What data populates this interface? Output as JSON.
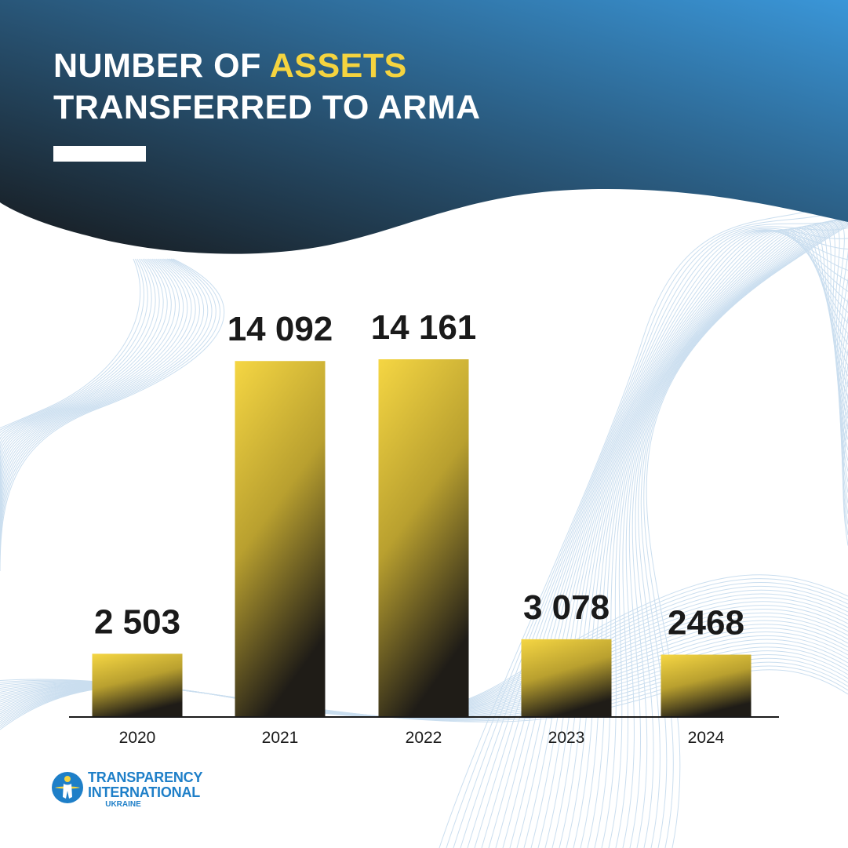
{
  "header": {
    "title_part1": "NUMBER OF ",
    "title_highlight": "ASSETS",
    "title_line2": "TRANSFERRED TO ARMA"
  },
  "colors": {
    "header_dark": "#1a1d21",
    "header_blue": "#3a96d8",
    "highlight_yellow": "#f5d43f",
    "bar_top": "#f5d643",
    "bar_bottom": "#1f1c17",
    "text_dark": "#1a1a1a",
    "logo_blue": "#1e7fc8"
  },
  "chart_data": {
    "type": "bar",
    "categories": [
      "2020",
      "2021",
      "2022",
      "2023",
      "2024"
    ],
    "values": [
      2503,
      14092,
      14161,
      3078,
      2468
    ],
    "value_labels": [
      "2 503",
      "14 092",
      "14 161",
      "3 078",
      "2468"
    ],
    "title": "NUMBER OF ASSETS TRANSFERRED TO ARMA",
    "xlabel": "",
    "ylabel": "",
    "ylim": [
      0,
      14161
    ],
    "grid": false,
    "legend": "none"
  },
  "logo": {
    "line1": "TRANSPARENCY",
    "line2": "INTERNATIONAL",
    "line3": "UKRAINE",
    "icon": "globe-figure-icon"
  }
}
